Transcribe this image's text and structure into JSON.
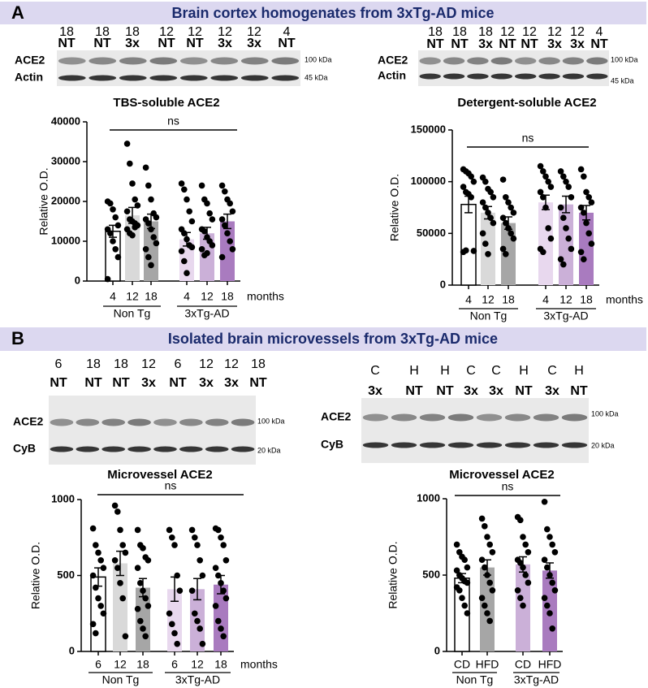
{
  "panels": [
    {
      "letter": "A",
      "title": "Brain cortex homogenates from 3xTg-AD mice"
    },
    {
      "letter": "B",
      "title": "Isolated brain microvessels from 3xTg-AD mice"
    }
  ],
  "blots": [
    {
      "lanes": [
        {
          "top": "18",
          "bottom": "NT"
        },
        {
          "top": "18",
          "bottom": "NT"
        },
        {
          "top": "18",
          "bottom": "3x"
        },
        {
          "top": "12",
          "bottom": "NT"
        },
        {
          "top": "12",
          "bottom": "NT"
        },
        {
          "top": "12",
          "bottom": "3x"
        },
        {
          "top": "12",
          "bottom": "3x"
        },
        {
          "top": "4",
          "bottom": "NT"
        }
      ],
      "rows": [
        "ACE2",
        "Actin"
      ],
      "sizes": [
        "100 kDa",
        "45 kDa"
      ]
    },
    {
      "lanes": [
        {
          "top": "18",
          "bottom": "NT"
        },
        {
          "top": "18",
          "bottom": "NT"
        },
        {
          "top": "18",
          "bottom": "3x"
        },
        {
          "top": "12",
          "bottom": "NT"
        },
        {
          "top": "12",
          "bottom": "NT"
        },
        {
          "top": "12",
          "bottom": "3x"
        },
        {
          "top": "12",
          "bottom": "3x"
        },
        {
          "top": "4",
          "bottom": "NT"
        }
      ],
      "rows": [
        "ACE2",
        "Actin"
      ],
      "sizes": [
        "100 kDa",
        "45 kDa"
      ]
    },
    {
      "lanes": [
        {
          "top": "6",
          "bottom": "NT"
        },
        {
          "top": "18",
          "bottom": "NT"
        },
        {
          "top": "18",
          "bottom": "NT"
        },
        {
          "top": "12",
          "bottom": "3x"
        },
        {
          "top": "6",
          "bottom": "NT"
        },
        {
          "top": "12",
          "bottom": "3x"
        },
        {
          "top": "12",
          "bottom": "3x"
        },
        {
          "top": "18",
          "bottom": "NT"
        }
      ],
      "rows": [
        "ACE2",
        "CyB"
      ],
      "sizes": [
        "100 kDa",
        "20 kDa"
      ]
    },
    {
      "lanes": [
        {
          "top": "C",
          "bottom": "3x"
        },
        {
          "top": "H",
          "bottom": "NT"
        },
        {
          "top": "H",
          "bottom": "NT"
        },
        {
          "top": "C",
          "bottom": "3x"
        },
        {
          "top": "C",
          "bottom": "3x"
        },
        {
          "top": "H",
          "bottom": "NT"
        },
        {
          "top": "C",
          "bottom": "3x"
        },
        {
          "top": "H",
          "bottom": "NT"
        }
      ],
      "rows": [
        "ACE2",
        "CyB"
      ],
      "sizes": [
        "100 kDa",
        "20 kDa"
      ]
    }
  ],
  "chart_data": [
    {
      "type": "bar",
      "title": "TBS-soluble ACE2",
      "ylabel": "Relative O.D.",
      "annotation": "ns",
      "x_unit_label": "months",
      "groups": [
        "Non Tg",
        "3xTg-AD"
      ],
      "categories": [
        "4",
        "12",
        "18",
        "4",
        "12",
        "18"
      ],
      "colors": [
        "#ffffff",
        "#d9d9d9",
        "#a6a6a6",
        "#e8d8ee",
        "#cbb0d8",
        "#a97bbf"
      ],
      "values": [
        12500,
        16500,
        15000,
        10500,
        12000,
        15000
      ],
      "errors": [
        1500,
        2000,
        1800,
        1700,
        1500,
        1800
      ],
      "points": [
        [
          20000,
          19500,
          18000,
          16000,
          14000,
          13000,
          12000,
          10000,
          8000,
          6000,
          500
        ],
        [
          34500,
          29500,
          24500,
          20500,
          19000,
          17500,
          15500,
          15000,
          14500,
          14000,
          13000,
          12000,
          11500,
          13500
        ],
        [
          28500,
          24000,
          20500,
          17000,
          16000,
          15500,
          14500,
          13000,
          11000,
          9500,
          8000,
          6000,
          4000
        ],
        [
          24500,
          23000,
          20500,
          17500,
          15000,
          13000,
          12000,
          10500,
          9000,
          8500,
          7500,
          5000,
          2000
        ],
        [
          24000,
          20500,
          19500,
          17000,
          15500,
          13000,
          12500,
          11000,
          10000,
          9000,
          8000,
          6500,
          7000
        ],
        [
          24000,
          22500,
          20500,
          19500,
          17500,
          15500,
          14000,
          12000,
          10000,
          8000,
          6000
        ]
      ],
      "ylim": [
        0,
        40000
      ],
      "yticks": [
        0,
        10000,
        20000,
        30000,
        40000
      ]
    },
    {
      "type": "bar",
      "title": "Detergent-soluble ACE2",
      "ylabel": "Relative O.D.",
      "annotation": "ns",
      "x_unit_label": "months",
      "groups": [
        "Non Tg",
        "3xTg-AD"
      ],
      "categories": [
        "4",
        "12",
        "18",
        "4",
        "12",
        "18"
      ],
      "colors": [
        "#ffffff",
        "#d9d9d9",
        "#a6a6a6",
        "#e8d8ee",
        "#cbb0d8",
        "#a97bbf"
      ],
      "values": [
        78000,
        70000,
        60000,
        80000,
        78000,
        70000
      ],
      "errors": [
        8000,
        6000,
        6000,
        7000,
        8000,
        7000
      ],
      "points": [
        [
          112000,
          110000,
          108000,
          105000,
          100000,
          95000,
          90000,
          88000,
          85000,
          33000,
          32000,
          33500
        ],
        [
          104000,
          100000,
          93000,
          90000,
          85000,
          80000,
          75000,
          70000,
          65000,
          60000,
          50000,
          40000,
          30000
        ],
        [
          102000,
          85000,
          80000,
          75000,
          70000,
          65000,
          60000,
          55000,
          50000,
          45000,
          35000,
          30000
        ],
        [
          115000,
          110000,
          105000,
          100000,
          95000,
          90000,
          85000,
          75000,
          55000,
          45000,
          35000,
          32000
        ],
        [
          110000,
          105000,
          100000,
          95000,
          85000,
          75000,
          65000,
          55000,
          45000,
          35000,
          25000,
          20000
        ],
        [
          112000,
          105000,
          90000,
          85000,
          80000,
          75000,
          70000,
          60000,
          50000,
          40000,
          32000,
          25000
        ]
      ],
      "ylim": [
        0,
        150000
      ],
      "yticks": [
        0,
        50000,
        100000,
        150000
      ]
    },
    {
      "type": "bar",
      "title": "Microvessel ACE2",
      "ylabel": "Relative O.D.",
      "annotation": "ns",
      "x_unit_label": "months",
      "groups": [
        "Non Tg",
        "3xTg-AD"
      ],
      "categories": [
        "6",
        "12",
        "18",
        "6",
        "12",
        "18"
      ],
      "colors": [
        "#ffffff",
        "#d9d9d9",
        "#a6a6a6",
        "#e8d8ee",
        "#cbb0d8",
        "#a97bbf"
      ],
      "values": [
        490,
        580,
        420,
        410,
        410,
        440
      ],
      "errors": [
        60,
        80,
        60,
        80,
        70,
        60
      ],
      "points": [
        [
          810,
          700,
          650,
          600,
          550,
          500,
          420,
          350,
          300,
          250,
          180,
          120
        ],
        [
          960,
          920,
          800,
          700,
          650,
          600,
          550,
          450,
          350,
          100
        ],
        [
          800,
          700,
          680,
          620,
          600,
          550,
          450,
          400,
          350,
          300,
          280,
          200,
          150,
          100
        ],
        [
          800,
          750,
          700,
          500,
          400,
          250,
          180,
          120,
          50
        ],
        [
          800,
          750,
          700,
          600,
          500,
          400,
          250,
          200,
          150,
          50
        ],
        [
          810,
          800,
          750,
          700,
          600,
          550,
          500,
          450,
          400,
          350,
          300,
          200,
          150,
          100
        ]
      ],
      "ylim": [
        0,
        1000
      ],
      "yticks": [
        0,
        500,
        1000
      ]
    },
    {
      "type": "bar",
      "title": "Microvessel ACE2",
      "ylabel": "Relative O.D.",
      "annotation": "ns",
      "groups": [
        "Non Tg",
        "3xTg-AD"
      ],
      "categories": [
        "CD",
        "HFD",
        "CD",
        "HFD"
      ],
      "colors": [
        "#ffffff",
        "#a6a6a6",
        "#cbb0d8",
        "#a97bbf"
      ],
      "values": [
        480,
        550,
        570,
        530
      ],
      "errors": [
        30,
        50,
        50,
        50
      ],
      "points": [
        [
          700,
          650,
          620,
          600,
          550,
          530,
          500,
          480,
          460,
          450,
          420,
          400,
          350,
          300,
          250
        ],
        [
          870,
          820,
          750,
          700,
          650,
          600,
          550,
          500,
          450,
          400,
          350,
          300,
          250,
          200
        ],
        [
          880,
          860,
          750,
          700,
          650,
          600,
          580,
          550,
          500,
          450,
          400,
          350,
          300
        ],
        [
          980,
          800,
          750,
          700,
          650,
          600,
          550,
          500,
          450,
          400,
          350,
          300,
          250,
          150
        ]
      ],
      "ylim": [
        0,
        1000
      ],
      "yticks": [
        0,
        500,
        1000
      ]
    }
  ]
}
